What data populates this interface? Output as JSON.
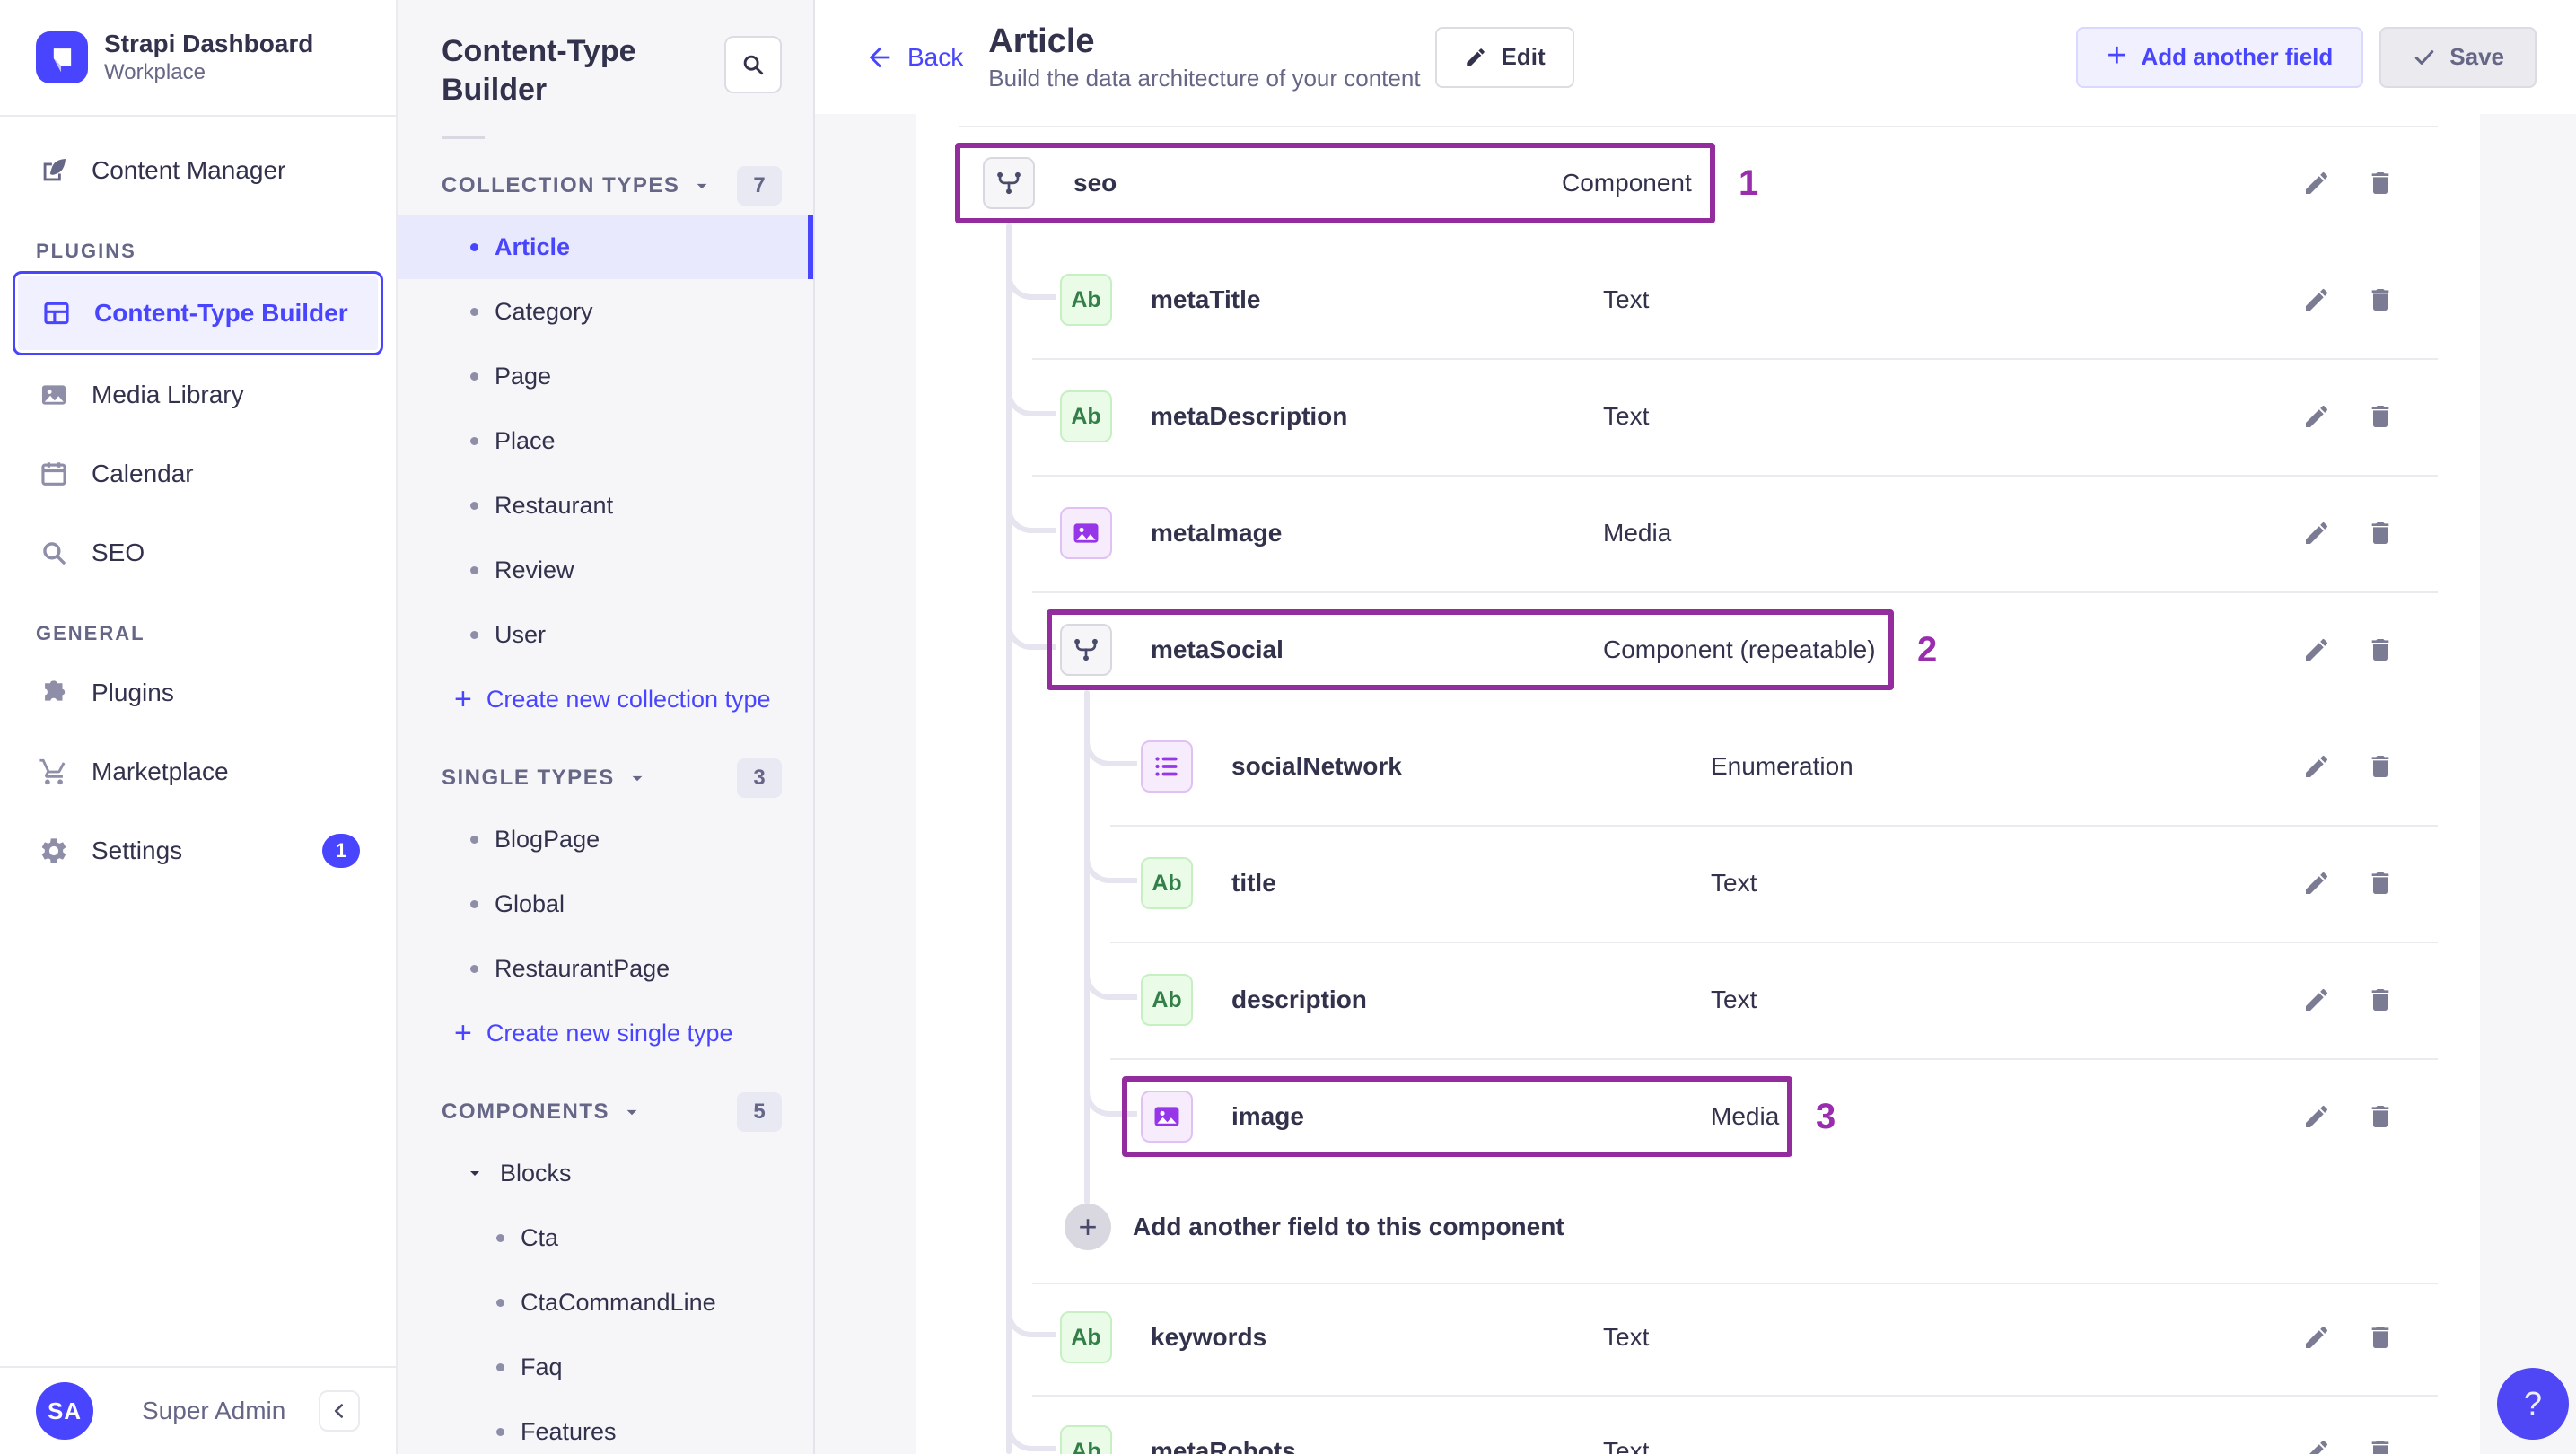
{
  "colors": {
    "primary": "#4945ff",
    "annotation": "#932d9e",
    "text_icon_green": "#328048",
    "purple_icon": "#9736e8"
  },
  "brand": {
    "title": "Strapi Dashboard",
    "subtitle": "Workplace"
  },
  "sidebar": {
    "sections": [
      {
        "items": [
          {
            "id": "content-manager",
            "label": "Content Manager",
            "icon": "feather"
          }
        ]
      },
      {
        "label": "PLUGINS",
        "items": [
          {
            "id": "content-type-builder",
            "label": "Content-Type Builder",
            "icon": "layout",
            "active": true
          },
          {
            "id": "media-library",
            "label": "Media Library",
            "icon": "image"
          },
          {
            "id": "calendar",
            "label": "Calendar",
            "icon": "calendar"
          },
          {
            "id": "seo",
            "label": "SEO",
            "icon": "search"
          }
        ]
      },
      {
        "label": "GENERAL",
        "items": [
          {
            "id": "plugins",
            "label": "Plugins",
            "icon": "puzzle"
          },
          {
            "id": "marketplace",
            "label": "Marketplace",
            "icon": "cart"
          },
          {
            "id": "settings",
            "label": "Settings",
            "icon": "gear",
            "badge": "1"
          }
        ]
      }
    ],
    "user": {
      "initials": "SA",
      "name": "Super Admin"
    }
  },
  "subnav": {
    "title": "Content-Type Builder",
    "sections": [
      {
        "label": "COLLECTION TYPES",
        "count": "7",
        "items": [
          {
            "label": "Article",
            "active": true
          },
          {
            "label": "Category"
          },
          {
            "label": "Page"
          },
          {
            "label": "Place"
          },
          {
            "label": "Restaurant"
          },
          {
            "label": "Review"
          },
          {
            "label": "User"
          }
        ],
        "action": "Create new collection type"
      },
      {
        "label": "SINGLE TYPES",
        "count": "3",
        "items": [
          {
            "label": "BlogPage"
          },
          {
            "label": "Global"
          },
          {
            "label": "RestaurantPage"
          }
        ],
        "action": "Create new single type"
      },
      {
        "label": "COMPONENTS",
        "count": "5",
        "groups": [
          {
            "label": "Blocks",
            "items": [
              {
                "label": "Cta"
              },
              {
                "label": "CtaCommandLine"
              },
              {
                "label": "Faq"
              },
              {
                "label": "Features"
              }
            ]
          }
        ]
      }
    ]
  },
  "header": {
    "back": "Back",
    "title": "Article",
    "subtitle": "Build the data architecture of your content",
    "edit": "Edit",
    "add_field": "Add another field",
    "save": "Save"
  },
  "fields": {
    "text_icon_label": "Ab",
    "rows": [
      {
        "name": "seo",
        "type": "Component",
        "icon": "component",
        "level": 0,
        "annotation": "1"
      },
      {
        "name": "metaTitle",
        "type": "Text",
        "icon": "text",
        "level": 1
      },
      {
        "name": "metaDescription",
        "type": "Text",
        "icon": "text",
        "level": 1,
        "divider": true
      },
      {
        "name": "metaImage",
        "type": "Media",
        "icon": "media",
        "level": 1,
        "divider": true
      },
      {
        "name": "metaSocial",
        "type": "Component (repeatable)",
        "icon": "component",
        "level": 1,
        "divider": true,
        "annotation": "2"
      },
      {
        "name": "socialNetwork",
        "type": "Enumeration",
        "icon": "enumeration",
        "level": 2
      },
      {
        "name": "title",
        "type": "Text",
        "icon": "text",
        "level": 2,
        "divider": true
      },
      {
        "name": "description",
        "type": "Text",
        "icon": "text",
        "level": 2,
        "divider": true
      },
      {
        "name": "image",
        "type": "Media",
        "icon": "media",
        "level": 2,
        "divider": true,
        "annotation": "3"
      },
      {
        "kind": "add",
        "label": "Add another field to this component",
        "level": 2
      },
      {
        "name": "keywords",
        "type": "Text",
        "icon": "text",
        "level": 1,
        "divider": true
      },
      {
        "name": "metaRobots",
        "type": "Text",
        "icon": "text",
        "level": 1,
        "divider": true
      }
    ]
  },
  "help": {
    "label": "?"
  }
}
